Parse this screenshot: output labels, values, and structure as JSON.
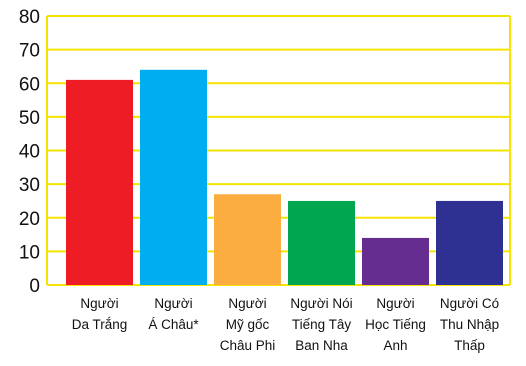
{
  "chart_data": {
    "type": "bar",
    "title": "",
    "xlabel": "",
    "ylabel": "",
    "ylim": [
      0,
      80
    ],
    "yticks": [
      0,
      10,
      20,
      30,
      40,
      50,
      60,
      70,
      80
    ],
    "grid": true,
    "grid_color": "#f5e400",
    "categories": [
      {
        "lines": [
          "Người",
          "Da Trắng"
        ]
      },
      {
        "lines": [
          "Người",
          "Á Châu*"
        ]
      },
      {
        "lines": [
          "Người",
          "Mỹ gốc",
          "Châu Phi"
        ]
      },
      {
        "lines": [
          "Người Nói",
          "Tiếng Tây",
          "Ban Nha"
        ]
      },
      {
        "lines": [
          "Người",
          "Học Tiếng",
          "Anh"
        ]
      },
      {
        "lines": [
          "Người Có",
          "Thu Nhập",
          "Thấp"
        ]
      }
    ],
    "values": [
      61,
      64,
      27,
      25,
      14,
      25
    ],
    "colors": [
      "#ee1c25",
      "#00aeef",
      "#fbad3f",
      "#00a650",
      "#662d91",
      "#2e3192"
    ]
  }
}
